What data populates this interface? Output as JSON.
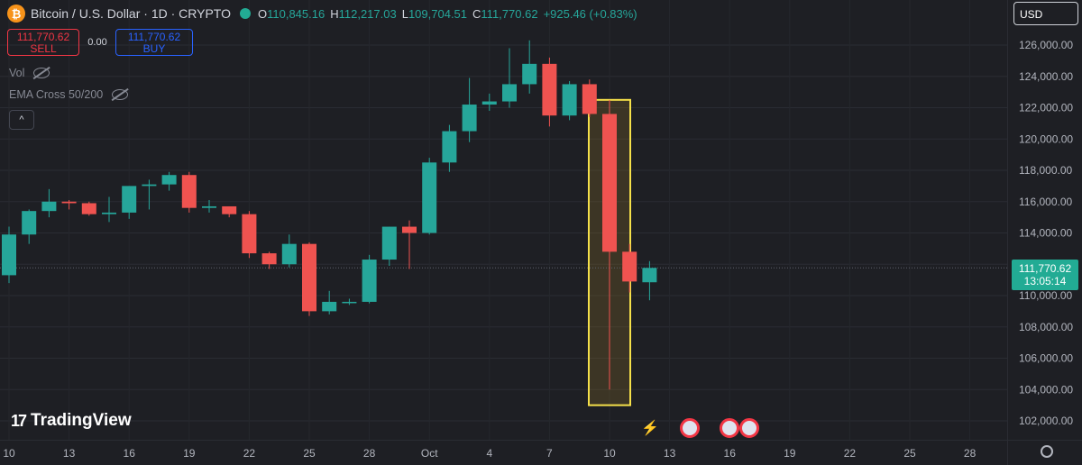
{
  "header": {
    "title": "Bitcoin / U.S. Dollar · 1D · CRYPTO",
    "ohlc": [
      {
        "k": "O",
        "v": "110,845.16"
      },
      {
        "k": "H",
        "v": "112,217.03"
      },
      {
        "k": "L",
        "v": "109,704.51"
      },
      {
        "k": "C",
        "v": "111,770.62"
      }
    ],
    "change": "+925.46 (+0.83%)"
  },
  "trade": {
    "sell_price": "111,770.62",
    "sell_label": "SELL",
    "spread": "0.00",
    "buy_price": "111,770.62",
    "buy_label": "BUY"
  },
  "legend": {
    "vol": "Vol",
    "ema": "EMA Cross 50/200",
    "collapse": "^"
  },
  "currency": "USD",
  "last_price": {
    "price": "111,770.62",
    "countdown": "13:05:14"
  },
  "brand": "TradingView",
  "colors": {
    "up": "#26a69a",
    "down": "#ef5350",
    "highlight": "#f5e04a",
    "bg": "#1e1f24"
  },
  "chart_data": {
    "type": "candlestick",
    "ylim": [
      101000,
      127000
    ],
    "y_ticks": [
      "102,000.00",
      "104,000.00",
      "106,000.00",
      "108,000.00",
      "110,000.00",
      "112,000.00",
      "114,000.00",
      "116,000.00",
      "118,000.00",
      "120,000.00",
      "122,000.00",
      "124,000.00",
      "126,000.00"
    ],
    "x_ticks": [
      "10",
      "13",
      "16",
      "19",
      "22",
      "25",
      "28",
      "Oct",
      "4",
      "7",
      "10",
      "13",
      "16",
      "19",
      "22",
      "25",
      "28"
    ],
    "candles": [
      {
        "o": 111300,
        "h": 114400,
        "l": 110800,
        "c": 113900
      },
      {
        "o": 113900,
        "h": 115500,
        "l": 113300,
        "c": 115400
      },
      {
        "o": 115400,
        "h": 116800,
        "l": 115000,
        "c": 116000
      },
      {
        "o": 116000,
        "h": 116100,
        "l": 115500,
        "c": 115900
      },
      {
        "o": 115900,
        "h": 116000,
        "l": 115100,
        "c": 115200
      },
      {
        "o": 115200,
        "h": 116300,
        "l": 114700,
        "c": 115300
      },
      {
        "o": 115300,
        "h": 117000,
        "l": 114900,
        "c": 117000
      },
      {
        "o": 117000,
        "h": 117400,
        "l": 115500,
        "c": 117100
      },
      {
        "o": 117100,
        "h": 117900,
        "l": 116700,
        "c": 117700
      },
      {
        "o": 117700,
        "h": 117900,
        "l": 115300,
        "c": 115600
      },
      {
        "o": 115600,
        "h": 116100,
        "l": 115300,
        "c": 115700
      },
      {
        "o": 115700,
        "h": 115700,
        "l": 115000,
        "c": 115200
      },
      {
        "o": 115200,
        "h": 115400,
        "l": 112400,
        "c": 112700
      },
      {
        "o": 112700,
        "h": 112800,
        "l": 111700,
        "c": 112000
      },
      {
        "o": 112000,
        "h": 113900,
        "l": 111800,
        "c": 113300
      },
      {
        "o": 113300,
        "h": 113400,
        "l": 108700,
        "c": 109000
      },
      {
        "o": 109000,
        "h": 110300,
        "l": 108800,
        "c": 109600
      },
      {
        "o": 109600,
        "h": 109800,
        "l": 109400,
        "c": 109600
      },
      {
        "o": 109600,
        "h": 112600,
        "l": 109500,
        "c": 112300
      },
      {
        "o": 112300,
        "h": 114400,
        "l": 111900,
        "c": 114400
      },
      {
        "o": 114400,
        "h": 114800,
        "l": 111700,
        "c": 114000
      },
      {
        "o": 114000,
        "h": 118800,
        "l": 113900,
        "c": 118500
      },
      {
        "o": 118500,
        "h": 120900,
        "l": 117900,
        "c": 120500
      },
      {
        "o": 120500,
        "h": 123900,
        "l": 119800,
        "c": 122200
      },
      {
        "o": 122200,
        "h": 122900,
        "l": 121800,
        "c": 122400
      },
      {
        "o": 122400,
        "h": 125800,
        "l": 122000,
        "c": 123500
      },
      {
        "o": 123500,
        "h": 126300,
        "l": 122900,
        "c": 124800
      },
      {
        "o": 124800,
        "h": 125200,
        "l": 120800,
        "c": 121500
      },
      {
        "o": 121500,
        "h": 123700,
        "l": 121200,
        "c": 123500
      },
      {
        "o": 123500,
        "h": 123800,
        "l": 121400,
        "c": 121600
      },
      {
        "o": 121600,
        "h": 122500,
        "l": 104000,
        "c": 112800
      },
      {
        "o": 112800,
        "h": 113300,
        "l": 110200,
        "c": 110900
      },
      {
        "o": 110850,
        "h": 112200,
        "l": 109700,
        "c": 111770
      }
    ],
    "highlight": {
      "from": 30,
      "to": 30,
      "y_low": 103000,
      "y_high": 122500
    },
    "events": [
      34,
      36,
      37
    ]
  }
}
